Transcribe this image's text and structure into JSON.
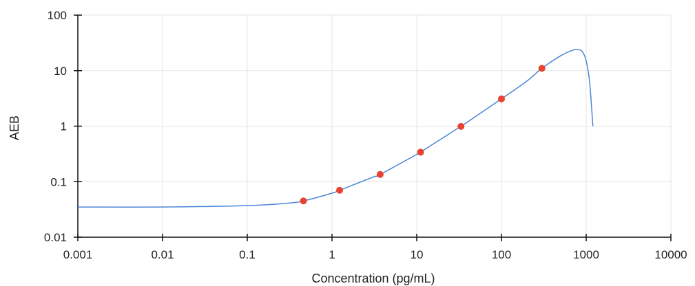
{
  "chart_data": {
    "type": "scatter",
    "title": "",
    "xlabel": "Concentration (pg/mL)",
    "ylabel": "AEB",
    "x_scale": "log",
    "y_scale": "log",
    "xlim": [
      0.001,
      10000
    ],
    "ylim": [
      0.01,
      100
    ],
    "x_ticks": [
      "0.001",
      "0.01",
      "0.1",
      "1",
      "10",
      "100",
      "1000",
      "10000"
    ],
    "y_ticks": [
      "0.01",
      "0.1",
      "1",
      "10",
      "100"
    ],
    "grid": true,
    "legend": "none",
    "points": {
      "x": [
        0.46,
        1.23,
        3.7,
        11.1,
        33.3,
        100,
        300
      ],
      "y": [
        0.045,
        0.07,
        0.135,
        0.34,
        0.99,
        3.1,
        11.0
      ],
      "color": "#e8432e"
    },
    "fit_curve": {
      "x": [
        0.001,
        0.01,
        0.1,
        0.3,
        0.46,
        1,
        1.23,
        3,
        3.7,
        10,
        11.1,
        30,
        33.3,
        100,
        200,
        300,
        500,
        700,
        800,
        900,
        1000,
        1100,
        1200
      ],
      "y": [
        0.035,
        0.035,
        0.037,
        0.041,
        0.045,
        0.062,
        0.07,
        0.12,
        0.135,
        0.31,
        0.34,
        0.9,
        0.99,
        3.1,
        6.5,
        11.0,
        18.5,
        23.5,
        24.0,
        22.0,
        15.0,
        6.0,
        1.0
      ],
      "color": "#4a86d4"
    },
    "colors": {
      "axis": "#111111",
      "grid": "#e4e4e4"
    }
  }
}
